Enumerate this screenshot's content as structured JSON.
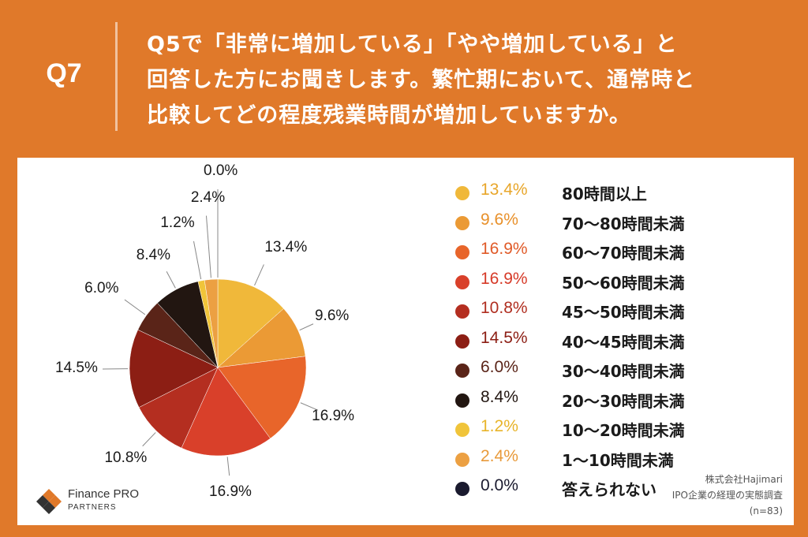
{
  "header": {
    "question_number": "Q7",
    "question_lines": [
      "Q5で「非常に増加している」「やや増加している」と",
      "回答した方にお聞きします。繁忙期において、通常時と",
      "比較してどの程度残業時間が増加していますか。"
    ]
  },
  "chart_data": {
    "type": "pie",
    "categories": [
      "80時間以上",
      "70〜80時間未満",
      "60〜70時間未満",
      "50〜60時間未満",
      "45〜50時間未満",
      "40〜45時間未満",
      "30〜40時間未満",
      "20〜30時間未満",
      "10〜20時間未満",
      "1〜10時間未満",
      "答えられない"
    ],
    "values": [
      13.4,
      9.6,
      16.9,
      16.9,
      10.8,
      14.5,
      6.0,
      8.4,
      1.2,
      2.4,
      0.0
    ],
    "value_labels": [
      "13.4%",
      "9.6%",
      "16.9%",
      "16.9%",
      "10.8%",
      "14.5%",
      "6.0%",
      "8.4%",
      "1.2%",
      "2.4%",
      "0.0%"
    ],
    "colors": [
      "#f0b83a",
      "#eb9a35",
      "#e8652a",
      "#d9402a",
      "#b42e20",
      "#8c1e14",
      "#5a2418",
      "#221611",
      "#f0c43a",
      "#eca042",
      "#1a1a2e"
    ],
    "legend_text_colors": [
      "#e8a62a",
      "#e8902a",
      "#e05a28",
      "#d63a28",
      "#b02e20",
      "#8c1e14",
      "#5a2418",
      "#221611",
      "#e8b42a",
      "#e89a3a",
      "#1a1a2e"
    ],
    "legend": "right"
  },
  "source": {
    "lines": [
      "株式会社Hajimari",
      "IPO企業の経理の実態調査",
      "(n=83)"
    ]
  },
  "logo": {
    "name": "Finance PRO",
    "sub": "PARTNERS"
  }
}
